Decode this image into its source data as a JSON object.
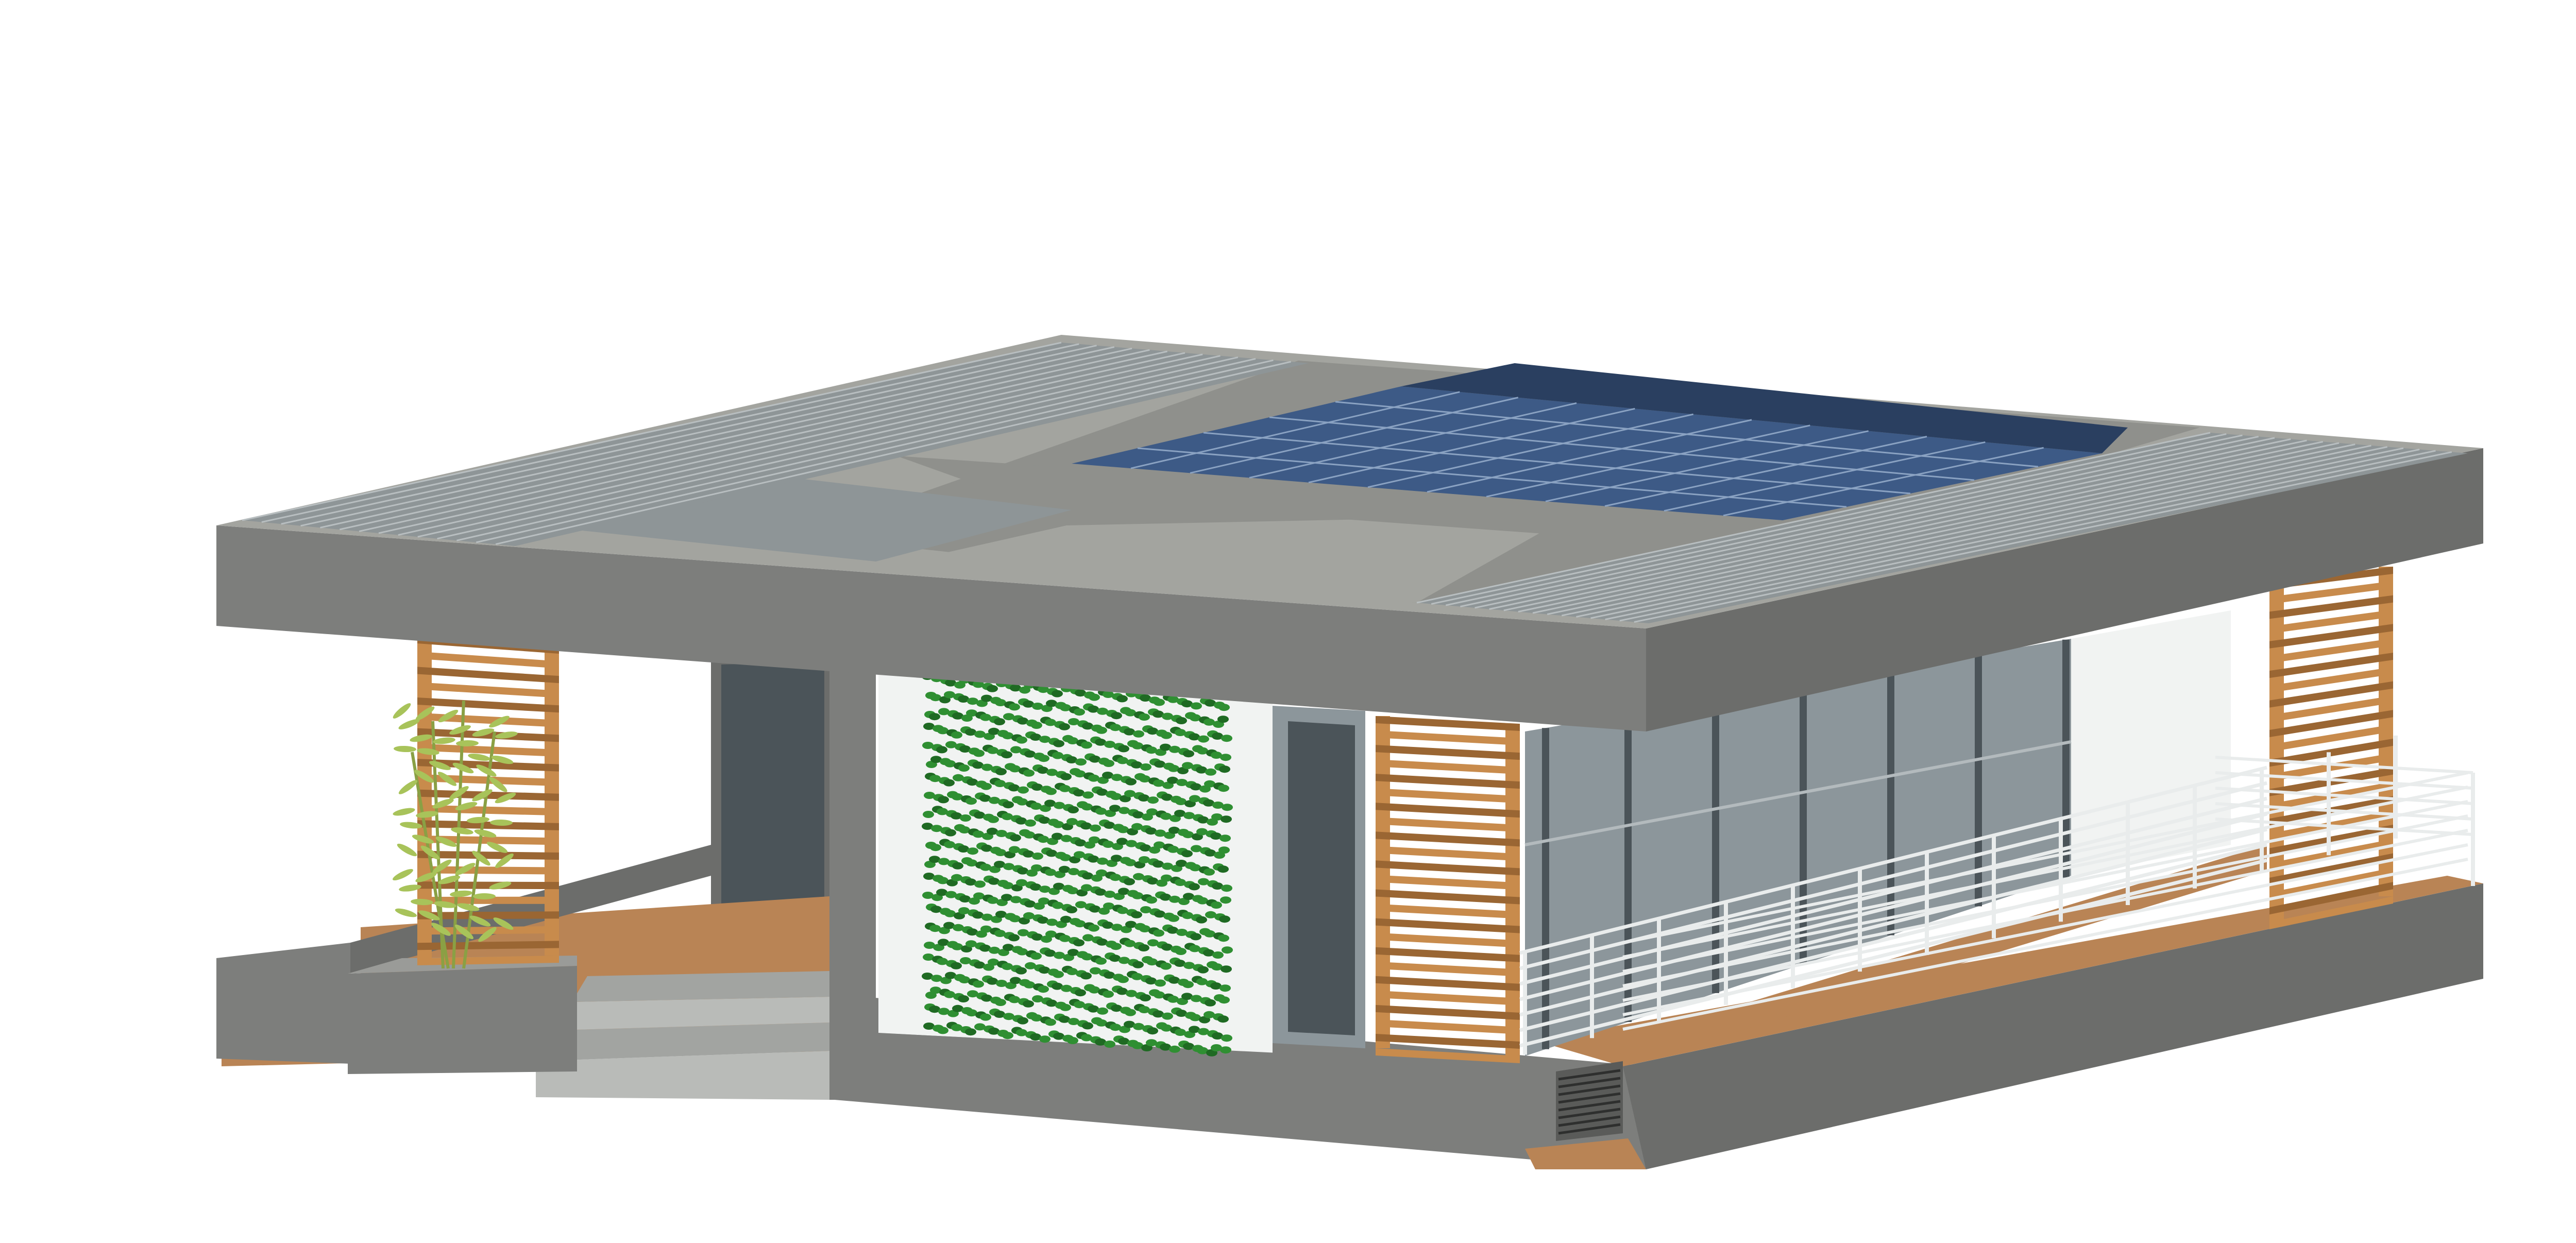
{
  "image": {
    "description_kind": "3d-architectural-rendering",
    "background_color": "#ffffff"
  },
  "colors": {
    "concrete_dark": "#6c6d6b",
    "concrete_mid": "#7d7e7c",
    "concrete_light": "#9a9b98",
    "roof_top": "#a3a49f",
    "roof_inner": "#8f908c",
    "solar_panel": "#3d5a86",
    "solar_panel_dark": "#2a3f60",
    "solar_grid": "#8aa2c2",
    "timber": "#c88b4c",
    "timber_dark": "#9a6633",
    "glass": "#8c969b",
    "glass_dark": "#4b5459",
    "white_wall": "#f1f3f2",
    "ivy_green": "#2f8f32",
    "ivy_dark": "#1f6a23",
    "bamboo": "#a8c35a",
    "railing": "#e9ecec",
    "deck": "#b98455",
    "stairs": "#b9bbb8"
  },
  "icons": {
    "solar": "solar-panel-icon",
    "green_wall": "ivy-wall-icon",
    "plant": "bamboo-plant-icon"
  }
}
